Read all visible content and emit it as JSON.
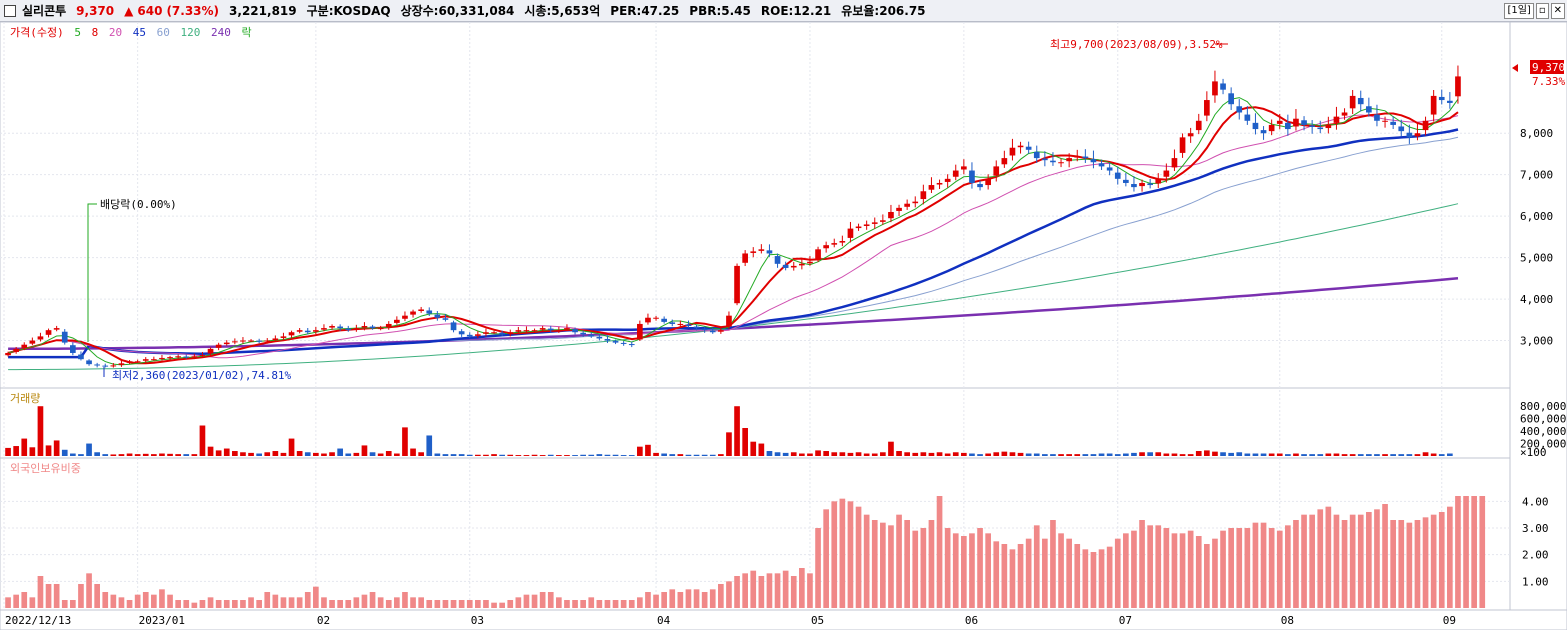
{
  "header": {
    "name": "실리콘투",
    "price": "9,370",
    "change_arrow": "▲",
    "change": "640",
    "change_pct": "(7.33%)",
    "volume": "3,221,819",
    "market": "구분:KOSDAQ",
    "shares": "상장수:60,331,084",
    "mktcap": "시총:5,653억",
    "per": "PER:47.25",
    "pbr": "PBR:5.45",
    "roe": "ROE:12.21",
    "float": "유보율:206.75",
    "period_button": "[1일]"
  },
  "colors": {
    "up": "#e00000",
    "down": "#1f5fc8",
    "ma5": "#22aa22",
    "ma8": "#e00000",
    "ma20": "#d050b0",
    "ma45": "#1030c0",
    "ma60": "#88a0d0",
    "ma120": "#40b080",
    "ma240": "#7a30b0",
    "foreign": "#f08888"
  },
  "legend": {
    "price": "가격(수정)",
    "ma5": "5",
    "ma8": "8",
    "ma20": "20",
    "ma45": "45",
    "ma60": "60",
    "ma120": "120",
    "ma240": "240",
    "dividend": "락"
  },
  "annotations": {
    "high": "최고9,700(2023/08/09),3.52%",
    "low": "최저2,360(2023/01/02),74.81%",
    "dividend": "배당락(0.00%)",
    "last_price": "9,370",
    "last_pct": "7.33%"
  },
  "chart_data": [
    {
      "type": "candlestick",
      "title": "가격(수정)",
      "x_labels": [
        "2022/12/13",
        "2023/01",
        "02",
        "03",
        "04",
        "05",
        "06",
        "07",
        "08",
        "09"
      ],
      "y_ticks": [
        "3,000",
        "4,000",
        "5,000",
        "6,000",
        "7,000",
        "8,000"
      ],
      "ylim": [
        2000,
        10200
      ],
      "close_series": [
        2700,
        2800,
        2900,
        3000,
        3100,
        3250,
        3300,
        2950,
        2700,
        2550,
        2430,
        2400,
        2380,
        2400,
        2450,
        2500,
        2500,
        2550,
        2550,
        2580,
        2600,
        2620,
        2600,
        2620,
        2650,
        2800,
        2900,
        2950,
        2980,
        3000,
        3000,
        2980,
        3000,
        3050,
        3100,
        3200,
        3250,
        3200,
        3250,
        3300,
        3350,
        3300,
        3250,
        3300,
        3350,
        3300,
        3300,
        3400,
        3500,
        3600,
        3700,
        3750,
        3650,
        3550,
        3500,
        3250,
        3150,
        3100,
        3150,
        3200,
        3200,
        3150,
        3200,
        3250,
        3250,
        3250,
        3300,
        3250,
        3250,
        3300,
        3200,
        3150,
        3100,
        3050,
        3000,
        2950,
        2920,
        2900,
        3400,
        3550,
        3550,
        3450,
        3400,
        3400,
        3350,
        3300,
        3250,
        3200,
        3250,
        3600,
        4800,
        5100,
        5150,
        5200,
        5100,
        4850,
        4750,
        4800,
        4850,
        4900,
        5200,
        5300,
        5350,
        5400,
        5700,
        5750,
        5800,
        5850,
        5900,
        6100,
        6200,
        6300,
        6350,
        6600,
        6750,
        6800,
        6900,
        7100,
        7200,
        6800,
        6700,
        6900,
        7200,
        7400,
        7650,
        7700,
        7600,
        7400,
        7350,
        7300,
        7300,
        7400,
        7450,
        7400,
        7300,
        7200,
        7100,
        6900,
        6800,
        6700,
        6800,
        6750,
        6900,
        7100,
        7400,
        7900,
        8000,
        8300,
        8800,
        9250,
        9050,
        8700,
        8500,
        8300,
        8100,
        8000,
        8200,
        8300,
        8100,
        8350,
        8200,
        8150,
        8100,
        8200,
        8400,
        8500,
        8900,
        8700,
        8500,
        8300,
        8300,
        8200,
        8050,
        7900,
        8000,
        8300,
        8900,
        8800,
        8730,
        9370
      ],
      "ma45_end": 8100,
      "ma120_end": 6300,
      "ma240_end": 4500,
      "high_point": 9700,
      "low_point": 2360
    },
    {
      "type": "bar",
      "title": "거래량",
      "y_ticks": [
        "800,000",
        "600,000",
        "400,000",
        "200,000",
        "×100"
      ],
      "ylim": [
        0,
        900000
      ],
      "volume_series": [
        130000,
        160000,
        280000,
        140000,
        800000,
        170000,
        250000,
        100000,
        40000,
        30000,
        200000,
        60000,
        30000,
        25000,
        30000,
        40000,
        30000,
        35000,
        30000,
        40000,
        35000,
        30000,
        30000,
        30000,
        490000,
        150000,
        90000,
        120000,
        80000,
        60000,
        50000,
        40000,
        60000,
        80000,
        50000,
        280000,
        80000,
        60000,
        50000,
        40000,
        60000,
        120000,
        40000,
        50000,
        170000,
        60000,
        40000,
        80000,
        40000,
        460000,
        120000,
        60000,
        330000,
        40000,
        30000,
        30000,
        30000,
        20000,
        20000,
        20000,
        30000,
        20000,
        20000,
        15000,
        15000,
        20000,
        15000,
        20000,
        15000,
        15000,
        15000,
        20000,
        20000,
        30000,
        20000,
        20000,
        15000,
        15000,
        150000,
        180000,
        50000,
        40000,
        30000,
        30000,
        20000,
        20000,
        20000,
        20000,
        30000,
        380000,
        800000,
        450000,
        230000,
        200000,
        80000,
        60000,
        50000,
        60000,
        40000,
        40000,
        90000,
        80000,
        60000,
        60000,
        50000,
        60000,
        40000,
        40000,
        60000,
        230000,
        80000,
        60000,
        50000,
        60000,
        50000,
        60000,
        40000,
        60000,
        50000,
        40000,
        30000,
        40000,
        60000,
        70000,
        60000,
        50000,
        40000,
        40000,
        30000,
        30000,
        30000,
        30000,
        30000,
        30000,
        30000,
        40000,
        40000,
        30000,
        40000,
        50000,
        60000,
        60000,
        60000,
        40000,
        40000,
        30000,
        30000,
        80000,
        90000,
        70000,
        60000,
        50000,
        60000,
        40000,
        40000,
        40000,
        40000,
        40000,
        30000,
        40000,
        30000,
        30000,
        30000,
        40000,
        40000,
        30000,
        30000,
        30000,
        30000,
        30000,
        30000,
        30000,
        30000,
        30000,
        30000,
        60000,
        40000,
        30000,
        40000
      ]
    },
    {
      "type": "bar",
      "title": "외국인보유비중",
      "y_ticks": [
        "4.00",
        "3.00",
        "2.00",
        "1.00"
      ],
      "ylim": [
        0,
        4.8
      ],
      "foreign_series": [
        0.4,
        0.5,
        0.6,
        0.4,
        1.2,
        0.9,
        0.9,
        0.3,
        0.3,
        0.9,
        1.3,
        0.9,
        0.6,
        0.5,
        0.4,
        0.3,
        0.5,
        0.6,
        0.5,
        0.7,
        0.5,
        0.3,
        0.3,
        0.2,
        0.3,
        0.4,
        0.3,
        0.3,
        0.3,
        0.3,
        0.4,
        0.3,
        0.6,
        0.5,
        0.4,
        0.4,
        0.4,
        0.6,
        0.8,
        0.4,
        0.3,
        0.3,
        0.3,
        0.4,
        0.5,
        0.6,
        0.4,
        0.3,
        0.4,
        0.6,
        0.4,
        0.4,
        0.3,
        0.3,
        0.3,
        0.3,
        0.3,
        0.3,
        0.3,
        0.3,
        0.2,
        0.2,
        0.3,
        0.4,
        0.5,
        0.5,
        0.6,
        0.6,
        0.4,
        0.3,
        0.3,
        0.3,
        0.4,
        0.3,
        0.3,
        0.3,
        0.3,
        0.3,
        0.4,
        0.6,
        0.5,
        0.6,
        0.7,
        0.6,
        0.7,
        0.7,
        0.6,
        0.7,
        0.9,
        1.0,
        1.2,
        1.3,
        1.4,
        1.2,
        1.3,
        1.3,
        1.4,
        1.2,
        1.5,
        1.3,
        3.0,
        3.7,
        4.0,
        4.1,
        4.0,
        3.8,
        3.5,
        3.3,
        3.2,
        3.1,
        3.5,
        3.3,
        2.9,
        3.0,
        3.3,
        4.2,
        3.0,
        2.8,
        2.7,
        2.8,
        3.0,
        2.8,
        2.5,
        2.4,
        2.2,
        2.4,
        2.6,
        3.1,
        2.6,
        3.3,
        2.8,
        2.6,
        2.4,
        2.2,
        2.1,
        2.2,
        2.3,
        2.6,
        2.8,
        2.9,
        3.3,
        3.1,
        3.1,
        3.0,
        2.8,
        2.8,
        2.9,
        2.7,
        2.4,
        2.6,
        2.9,
        3.0,
        3.0,
        3.0,
        3.2,
        3.2,
        3.0,
        2.9,
        3.1,
        3.3,
        3.5,
        3.5,
        3.7,
        3.8,
        3.5,
        3.3,
        3.5,
        3.5,
        3.6,
        3.7,
        3.9,
        3.3,
        3.3,
        3.2,
        3.3,
        3.4,
        3.5,
        3.6,
        3.8,
        4.2,
        4.2,
        4.2,
        4.2
      ]
    }
  ]
}
